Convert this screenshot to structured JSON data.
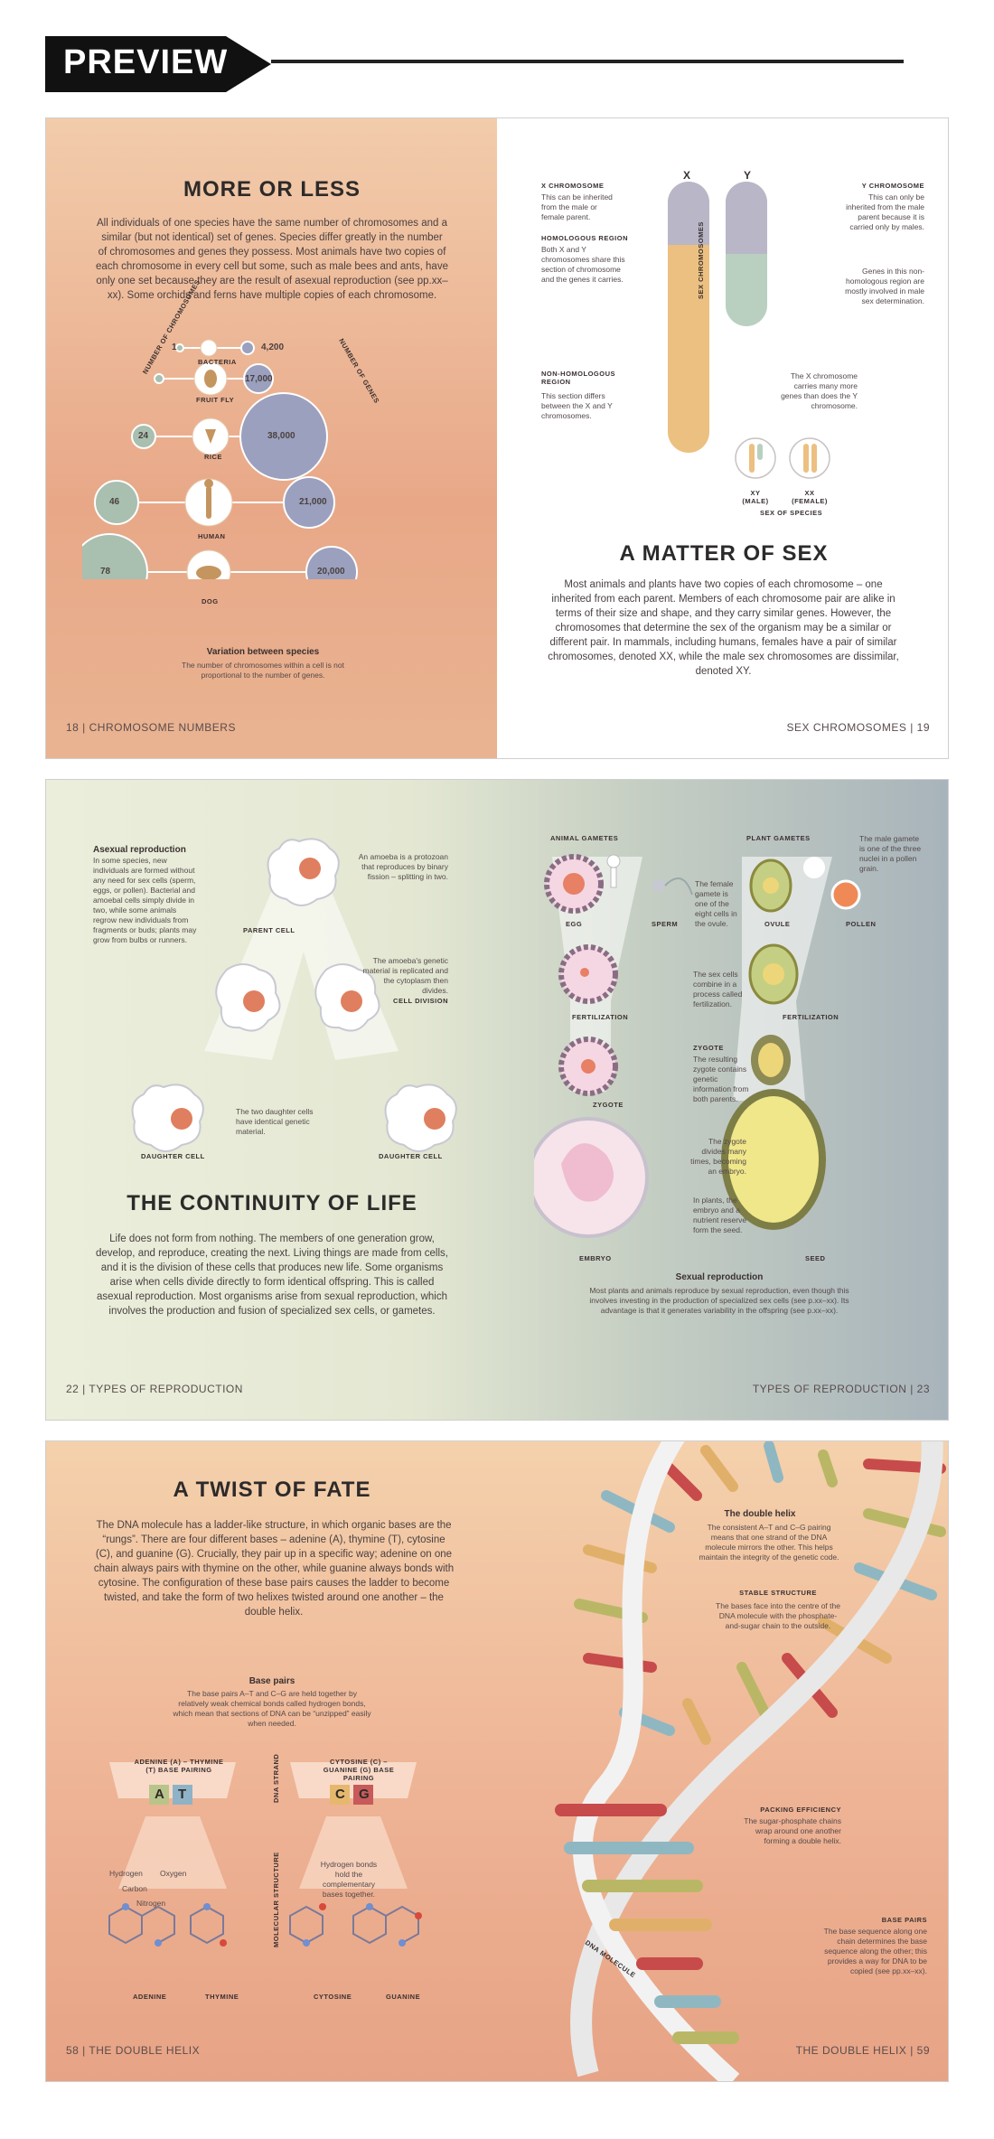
{
  "banner": {
    "label": "PREVIEW"
  },
  "spread1": {
    "left": {
      "title": "MORE OR LESS",
      "intro": "All individuals of one species have the same number of chromosomes and a similar (but not identical) set of genes. Species differ greatly in the number of chromosomes and genes they possess. Most animals have two copies of each chromosome in every cell but some, such as male bees and ants, have only one set because they are the result of asexual reproduction (see pp.xx–xx). Some orchids and ferns have multiple copies of each chromosome.",
      "axis_left": "NUMBER OF CHROMOSOMES",
      "axis_right": "NUMBER OF GENES",
      "species": [
        {
          "name": "BACTERIA",
          "chromosomes": "1",
          "genes": "4,200"
        },
        {
          "name": "FRUIT FLY",
          "chromosomes": "",
          "genes": "17,000"
        },
        {
          "name": "RICE",
          "chromosomes": "24",
          "genes": "38,000"
        },
        {
          "name": "HUMAN",
          "chromosomes": "46",
          "genes": "21,000"
        },
        {
          "name": "DOG",
          "chromosomes": "78",
          "genes": "20,000"
        }
      ],
      "variation_title": "Variation between species",
      "variation_text": "The number of chromosomes within a cell is not proportional to the number of genes.",
      "footer": "18 | CHROMOSOME NUMBERS"
    },
    "right": {
      "x_label": "X",
      "y_label": "Y",
      "x_head": "X CHROMOSOME",
      "x_text": "This can be inherited from the male or female parent.",
      "homol_head": "HOMOLOGOUS REGION",
      "homol_text": "Both X and Y chromosomes share this section of chromosome and the genes it carries.",
      "nonhomol_head": "NON-HOMOLOGOUS REGION",
      "nonhomol_text": "This section differs between the X and Y chromosomes.",
      "y_head": "Y CHROMOSOME",
      "y_text": "This can only be inherited from the male parent because it is carried only by males.",
      "genes_text": "Genes in this non-homologous region are mostly involved in male sex determination.",
      "xcarry_text": "The X chromosome carries many more genes than does the Y chromosome.",
      "sex_chrom": "SEX CHROMOSOMES",
      "xy": "XY (MALE)",
      "xx": "XX (FEMALE)",
      "sex_species": "SEX OF SPECIES",
      "title": "A MATTER OF SEX",
      "intro": "Most animals and plants have two copies of each chromosome – one inherited from each parent. Members of each chromosome pair are alike in terms of their size and shape, and they carry similar genes. However, the chromosomes that determine the sex of the organism may be a similar or different pair. In mammals, including humans, females have a pair of similar chromosomes, denoted XX, while the male sex chromosomes are dissimilar, denoted XY.",
      "footer": "SEX CHROMOSOMES | 19"
    }
  },
  "spread2": {
    "asexual_title": "Asexual reproduction",
    "asexual_text": "In some species, new individuals are formed without any need for sex cells (sperm, eggs, or pollen). Bacterial and amoebal cells simply divide in two, while some animals regrow new individuals from fragments or buds; plants may grow from bulbs or runners.",
    "amoeba_note": "An amoeba is a protozoan that reproduces by binary fission – splitting in two.",
    "parent_cell": "PARENT CELL",
    "replicate_note": "The amoeba's genetic material is replicated and the cytoplasm then divides.",
    "cell_division": "CELL DIVISION",
    "daughter_note": "The two daughter cells have identical genetic material.",
    "daughter_cell": "DAUGHTER CELL",
    "title": "THE CONTINUITY OF LIFE",
    "intro": "Life does not form from nothing. The members of one generation grow, develop, and reproduce, creating the next. Living things are made from cells, and it is the division of these cells that produces new life. Some organisms arise when cells divide directly to form identical offspring. This is called asexual reproduction. Most organisms arise from sexual reproduction, which involves the production and fusion of specialized sex cells, or gametes.",
    "animal_gametes": "ANIMAL GAMETES",
    "plant_gametes": "PLANT GAMETES",
    "male_gamete_note": "The male gamete is one of the three nuclei in a pollen grain.",
    "egg": "EGG",
    "sperm": "SPERM",
    "ovule": "OVULE",
    "pollen": "POLLEN",
    "female_note": "The female gamete is one of the eight cells in the ovule.",
    "fert_note": "The sex cells combine in a process called fertilization.",
    "fertilization": "FERTILIZATION",
    "zygote_head": "ZYGOTE",
    "zygote_note": "The resulting zygote contains genetic information from both parents.",
    "zygote": "ZYGOTE",
    "divides_note": "The zygote divides many times, becoming an embryo.",
    "plants_note": "In plants, the embryo and a nutrient reserve form the seed.",
    "embryo": "EMBRYO",
    "seed": "SEED",
    "sexual_title": "Sexual reproduction",
    "sexual_text": "Most plants and animals reproduce by sexual reproduction, even though this involves investing in the production of specialized sex cells (see p.xx–xx). Its advantage is that it generates variability in the offspring (see p.xx–xx).",
    "footer_left": "22 | TYPES OF REPRODUCTION",
    "footer_right": "TYPES OF REPRODUCTION | 23"
  },
  "spread3": {
    "title": "A TWIST OF FATE",
    "intro": "The DNA molecule has a ladder-like structure, in which organic bases are the “rungs”. There are four different bases – adenine (A), thymine (T), cytosine (C), and guanine (G). Crucially, they pair up in a specific way; adenine on one chain always pairs with thymine on the other, while guanine always bonds with cytosine. The configuration of these base pairs causes the ladder to become twisted, and take the form of two helixes twisted around one another – the double helix.",
    "basepairs_title": "Base pairs",
    "basepairs_text": "The base pairs A–T and C–G are held together by relatively weak chemical bonds called hydrogen bonds, which mean that sections of DNA can be “unzipped” easily when needed.",
    "at_label": "ADENINE (A) – THYMINE (T) BASE PAIRING",
    "cg_label": "CYTOSINE (C) – GUANINE (G) BASE PAIRING",
    "dna_strand": "DNA STRAND",
    "mol_structure": "MOLECULAR STRUCTURE",
    "letters": [
      "A",
      "T",
      "C",
      "G"
    ],
    "hydrogen": "Hydrogen",
    "oxygen": "Oxygen",
    "carbon": "Carbon",
    "nitrogen": "Nitrogen",
    "hbond_note": "Hydrogen bonds hold the complementary bases together.",
    "adenine": "ADENINE",
    "thymine": "THYMINE",
    "cytosine": "CYTOSINE",
    "guanine": "GUANINE",
    "helix_title": "The double helix",
    "helix_text": "The consistent A–T and C–G pairing means that one strand of the DNA molecule mirrors the other. This helps maintain the integrity of the genetic code.",
    "stable_head": "STABLE STRUCTURE",
    "stable_text": "The bases face into the centre of the DNA molecule with the phosphate-and-sugar chain to the outside.",
    "packing_head": "PACKING EFFICIENCY",
    "packing_text": "The sugar-phosphate chains wrap around one another forming a double helix.",
    "bp_head": "BASE PAIRS",
    "bp_text": "The base sequence along one chain determines the base sequence along the other; this provides a way for DNA to be copied (see pp.xx–xx).",
    "dna_molecule": "DNA MOLECULE",
    "footer_left": "58 | THE DOUBLE HELIX",
    "footer_right": "THE DOUBLE HELIX | 59"
  },
  "colors": {
    "sage": "#a9bfb0",
    "lavender": "#9aa0bd",
    "peach": "#efb08c",
    "gold": "#e8b76a",
    "accent_red": "#d95c4a"
  }
}
